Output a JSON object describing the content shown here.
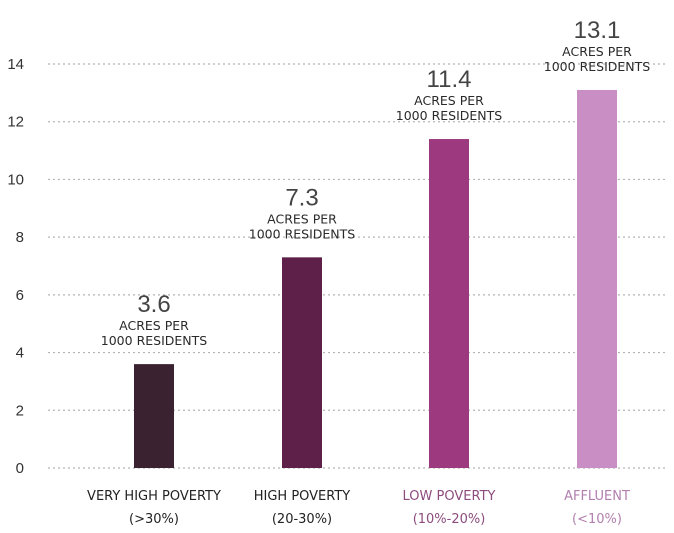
{
  "chart_data": {
    "type": "bar",
    "title": "",
    "xlabel": "",
    "ylabel": "",
    "ylim": [
      0,
      14
    ],
    "yticks": [
      0,
      2,
      4,
      6,
      8,
      10,
      12,
      14
    ],
    "grid": true,
    "unit_lines": [
      "ACRES PER",
      "1000 RESIDENTS"
    ],
    "categories": [
      {
        "name": "VERY HIGH POVERTY",
        "range": "(>30%)",
        "value": 3.6,
        "value_label": "3.6",
        "color": "#3b2231",
        "label_color": "#222222"
      },
      {
        "name": "HIGH POVERTY",
        "range": "(20-30%)",
        "value": 7.3,
        "value_label": "7.3",
        "color": "#5e1f48",
        "label_color": "#222222"
      },
      {
        "name": "LOW POVERTY",
        "range": "(10%-20%)",
        "value": 11.4,
        "value_label": "11.4",
        "color": "#9d3a7f",
        "label_color": "#8c4c7e"
      },
      {
        "name": "AFFLUENT",
        "range": "(<10%)",
        "value": 13.1,
        "value_label": "13.1",
        "color": "#c98fc4",
        "label_color": "#b27fae"
      }
    ]
  }
}
